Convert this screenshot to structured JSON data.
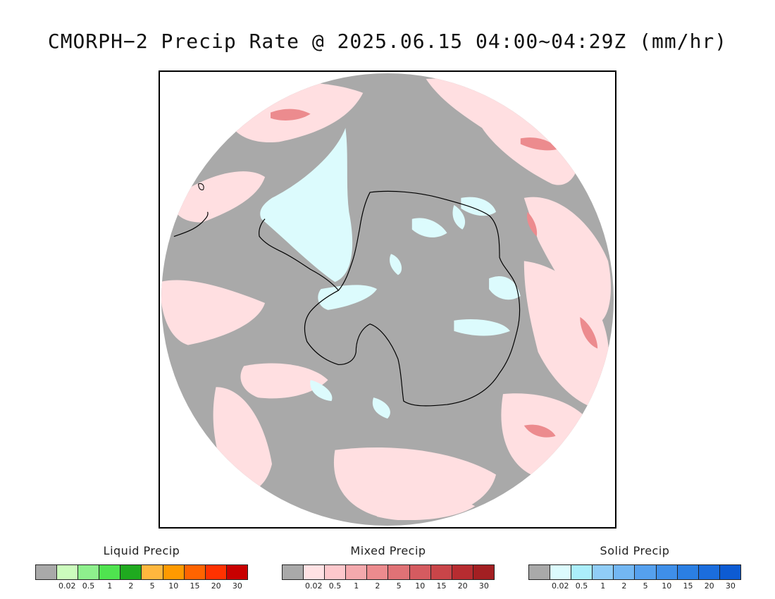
{
  "title": "CMORPH−2 Precip Rate @ 2025.06.15 04:00~04:29Z (mm/hr)",
  "map": {
    "projection": "south-polar-stereographic",
    "ocean_dry_color": "#a9a9a9",
    "outside_color": "#ffffff",
    "coastline_color": "#000000",
    "dominant_mixed_color": "#ffdfe1",
    "dominant_solid_color": "#dcfbfd"
  },
  "legends": [
    {
      "title": "Liquid Precip",
      "ticks": [
        "0.02",
        "0.5",
        "1",
        "2",
        "5",
        "10",
        "15",
        "20",
        "30"
      ],
      "colors": [
        "#a9a9a9",
        "#ccfcbd",
        "#8ef08d",
        "#4fe34f",
        "#1faa1f",
        "#ffb73e",
        "#ff9a00",
        "#ff6400",
        "#ff3200",
        "#c80000"
      ]
    },
    {
      "title": "Mixed Precip",
      "ticks": [
        "0.02",
        "0.5",
        "1",
        "2",
        "5",
        "10",
        "15",
        "20",
        "30"
      ],
      "colors": [
        "#a9a9a9",
        "#ffe2e4",
        "#fdc8cc",
        "#f4a9ad",
        "#ec8b8e",
        "#e07276",
        "#d55b60",
        "#c94549",
        "#b72c30",
        "#a31f22"
      ]
    },
    {
      "title": "Solid Precip",
      "ticks": [
        "0.02",
        "0.5",
        "1",
        "2",
        "5",
        "10",
        "15",
        "20",
        "30"
      ],
      "colors": [
        "#a9a9a9",
        "#dcfbfd",
        "#abeefb",
        "#90cdf7",
        "#73b7f3",
        "#55a0ee",
        "#3f8fe9",
        "#2b7fe3",
        "#1b6ddd",
        "#0d5bd3"
      ]
    }
  ]
}
